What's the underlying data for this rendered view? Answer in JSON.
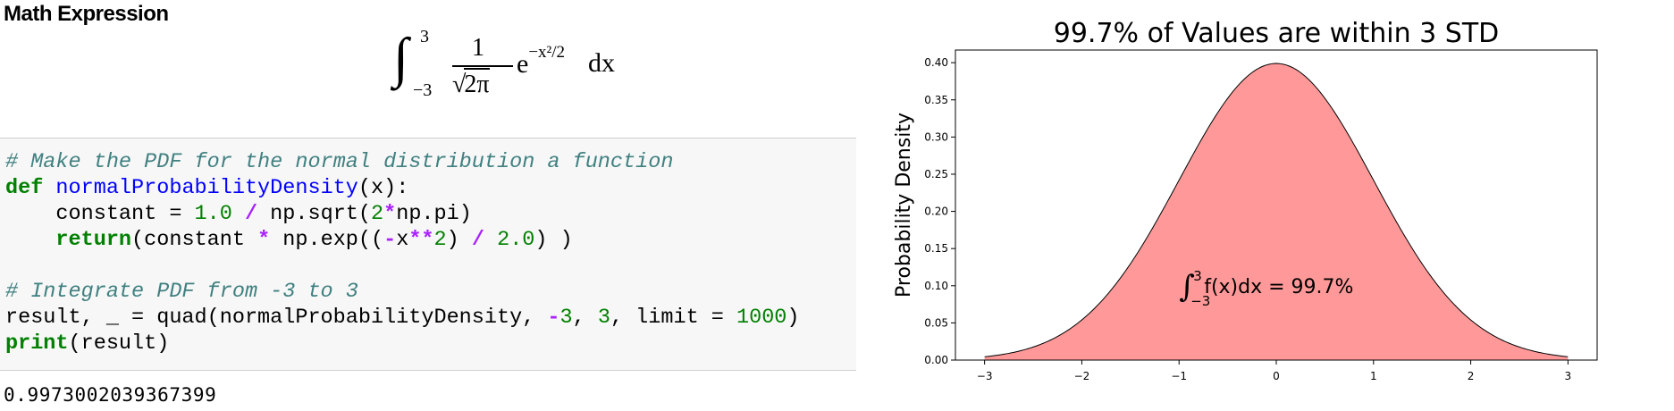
{
  "header": {
    "title": "Math Expression"
  },
  "math": {
    "integral_upper": "3",
    "integral_lower": "−3",
    "numerator": "1",
    "denominator": "2π",
    "base": "e",
    "exponent": "−x²/2",
    "differential": "dx"
  },
  "code": {
    "lines": [
      "# Make the PDF for the normal distribution a function",
      "def normalProbabilityDensity(x):",
      "    constant = 1.0 / np.sqrt(2*np.pi)",
      "    return(constant * np.exp((-x**2) / 2.0) )",
      "",
      "# Integrate PDF from -3 to 3",
      "result, _ = quad(normalProbabilityDensity, -3, 3, limit = 1000)",
      "print(result)"
    ],
    "output": "0.9973002039367399"
  },
  "chart_data": {
    "type": "area",
    "title": "99.7% of Values are within 3 STD",
    "xlabel": "",
    "ylabel": "Probability Density",
    "xlim": [
      -3.3,
      3.3
    ],
    "ylim": [
      0,
      0.417
    ],
    "x_ticks": [
      "−3",
      "−2",
      "−1",
      "0",
      "1",
      "2",
      "3"
    ],
    "x_tick_values": [
      -3,
      -2,
      -1,
      0,
      1,
      2,
      3
    ],
    "y_ticks": [
      "0.00",
      "0.05",
      "0.10",
      "0.15",
      "0.20",
      "0.25",
      "0.30",
      "0.35",
      "0.40"
    ],
    "y_tick_values": [
      0,
      0.05,
      0.1,
      0.15,
      0.2,
      0.25,
      0.3,
      0.35,
      0.4
    ],
    "curve": "standard normal pdf",
    "fill_range": [
      -3,
      3
    ],
    "fill_color": "#ff9999",
    "grid": false,
    "annotation": {
      "integral_upper": "3",
      "integral_lower": "−3",
      "body": "f(x)dx = 99.7%",
      "x": -1,
      "y": 0.09
    }
  }
}
